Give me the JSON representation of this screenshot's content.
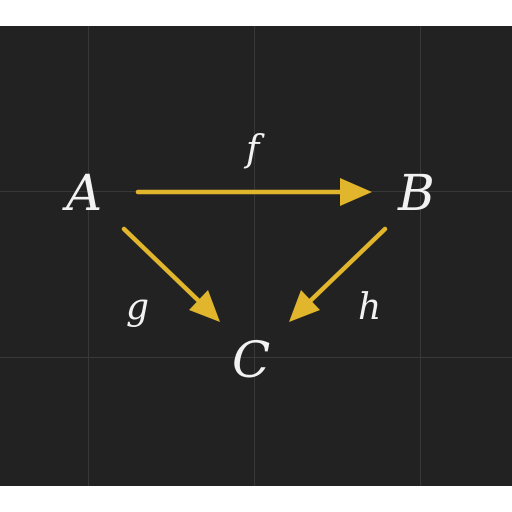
{
  "diagram": {
    "background_color": "#222222",
    "grid_color": "#383838",
    "arrow_color": "#e2b62c",
    "text_color": "#f2f2f2",
    "objects": {
      "A": "A",
      "B": "B",
      "C": "C"
    },
    "morphisms": [
      {
        "id": "f",
        "label": "f",
        "from": "A",
        "to": "B"
      },
      {
        "id": "g",
        "label": "g",
        "from": "A",
        "to": "C"
      },
      {
        "id": "h",
        "label": "h",
        "from": "B",
        "to": "C"
      }
    ]
  }
}
